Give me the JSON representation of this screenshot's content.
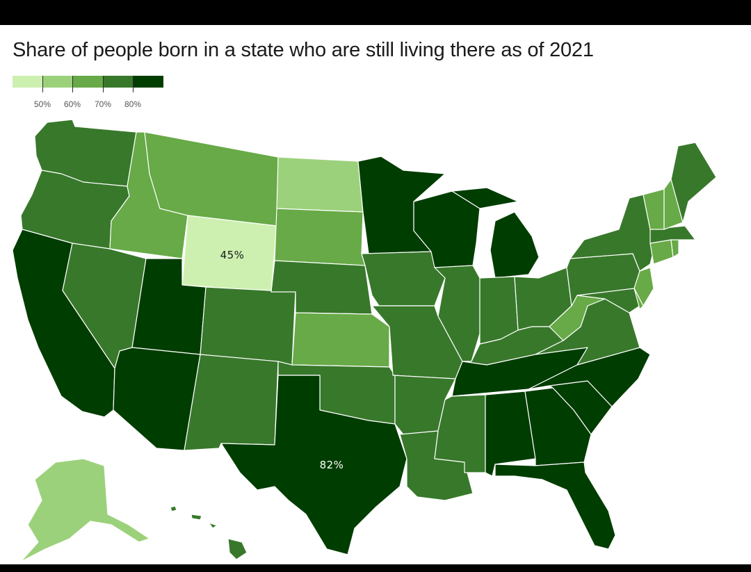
{
  "title": "Share of people born in a state who are still living there as of 2021",
  "legend": {
    "colors": [
      "#cdf0b0",
      "#9cd17b",
      "#67aa47",
      "#38782b",
      "#003d00"
    ],
    "ticks": [
      "50%",
      "60%",
      "70%",
      "80%"
    ]
  },
  "labels": {
    "wyoming": "45%",
    "texas": "82%"
  },
  "state_bins": {
    "washington": "70-80%",
    "oregon": "70-80%",
    "california": "80%+",
    "idaho": "60-70%",
    "nevada": "70-80%",
    "montana": "60-70%",
    "wyoming": "<50%",
    "utah": "80%+",
    "arizona": "80%+",
    "colorado": "70-80%",
    "new_mexico": "70-80%",
    "north_dakota": "50-60%",
    "south_dakota": "60-70%",
    "nebraska": "70-80%",
    "kansas": "60-70%",
    "oklahoma": "70-80%",
    "texas": "80%+",
    "minnesota": "80%+",
    "iowa": "70-80%",
    "missouri": "70-80%",
    "arkansas": "70-80%",
    "louisiana": "70-80%",
    "wisconsin": "80%+",
    "illinois": "70-80%",
    "michigan": "80%+",
    "indiana": "70-80%",
    "ohio": "70-80%",
    "kentucky": "70-80%",
    "tennessee": "80%+",
    "mississippi": "70-80%",
    "alabama": "80%+",
    "georgia": "80%+",
    "florida": "80%+",
    "south_carolina": "80%+",
    "north_carolina": "80%+",
    "virginia": "70-80%",
    "west_virginia": "60-70%",
    "pennsylvania": "70-80%",
    "new_york": "70-80%",
    "new_jersey": "60-70%",
    "delaware": "60-70%",
    "maryland": "70-80%",
    "connecticut": "60-70%",
    "rhode_island": "60-70%",
    "massachusetts": "70-80%",
    "vermont": "60-70%",
    "new_hampshire": "60-70%",
    "maine": "70-80%",
    "alaska": "50-60%",
    "hawaii": "70-80%"
  }
}
